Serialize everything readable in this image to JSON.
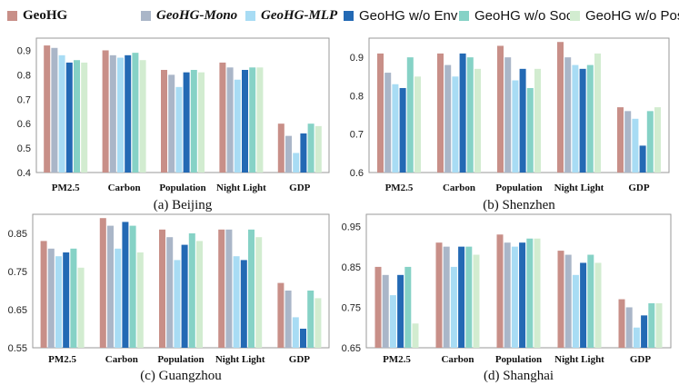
{
  "legend": [
    {
      "name": "GeoHG",
      "color": "#c88f88",
      "style": "bold"
    },
    {
      "name": "GeoHG-Mono",
      "color": "#aab6c8",
      "style": "bi"
    },
    {
      "name": "GeoHG-MLP",
      "color": "#a8dcf4",
      "style": "bi"
    },
    {
      "name": "GeoHG w/o Env",
      "color": "#2369b4",
      "style": "normal"
    },
    {
      "name": "GeoHG w/o Soc",
      "color": "#86d2c6",
      "style": "normal"
    },
    {
      "name": "GeoHG w/o Pos",
      "color": "#d2ecd0",
      "style": "normal"
    }
  ],
  "chart_data": [
    {
      "type": "bar",
      "title": "(a) Beijing",
      "categories": [
        "PM2.5",
        "Carbon",
        "Population",
        "Night Light",
        "GDP"
      ],
      "ylim": [
        0.4,
        0.95
      ],
      "yticks": [
        "0.4",
        "0.5",
        "0.6",
        "0.7",
        "0.8",
        "0.9"
      ],
      "series": [
        {
          "name": "GeoHG",
          "values": [
            0.92,
            0.9,
            0.82,
            0.85,
            0.6
          ]
        },
        {
          "name": "GeoHG-Mono",
          "values": [
            0.91,
            0.88,
            0.8,
            0.83,
            0.55
          ]
        },
        {
          "name": "GeoHG-MLP",
          "values": [
            0.88,
            0.87,
            0.75,
            0.78,
            0.48
          ]
        },
        {
          "name": "GeoHG w/o Env",
          "values": [
            0.85,
            0.88,
            0.81,
            0.82,
            0.56
          ]
        },
        {
          "name": "GeoHG w/o Soc",
          "values": [
            0.86,
            0.89,
            0.82,
            0.83,
            0.6
          ]
        },
        {
          "name": "GeoHG w/o Pos",
          "values": [
            0.85,
            0.86,
            0.81,
            0.83,
            0.59
          ]
        }
      ]
    },
    {
      "type": "bar",
      "title": "(b) Shenzhen",
      "categories": [
        "PM2.5",
        "Carbon",
        "Population",
        "Night Light",
        "GDP"
      ],
      "ylim": [
        0.6,
        0.95
      ],
      "yticks": [
        "0.6",
        "0.7",
        "0.8",
        "0.9"
      ],
      "series": [
        {
          "name": "GeoHG",
          "values": [
            0.91,
            0.91,
            0.93,
            0.94,
            0.77
          ]
        },
        {
          "name": "GeoHG-Mono",
          "values": [
            0.86,
            0.88,
            0.9,
            0.9,
            0.76
          ]
        },
        {
          "name": "GeoHG-MLP",
          "values": [
            0.83,
            0.85,
            0.84,
            0.88,
            0.74
          ]
        },
        {
          "name": "GeoHG w/o Env",
          "values": [
            0.82,
            0.91,
            0.87,
            0.87,
            0.67
          ]
        },
        {
          "name": "GeoHG w/o Soc",
          "values": [
            0.9,
            0.9,
            0.82,
            0.88,
            0.76
          ]
        },
        {
          "name": "GeoHG w/o Pos",
          "values": [
            0.85,
            0.87,
            0.87,
            0.91,
            0.77
          ]
        }
      ]
    },
    {
      "type": "bar",
      "title": "(c) Guangzhou",
      "categories": [
        "PM2.5",
        "Carbon",
        "Population",
        "Night Light",
        "GDP"
      ],
      "ylim": [
        0.55,
        0.9
      ],
      "yticks": [
        "0.55",
        "0.65",
        "0.75",
        "0.85"
      ],
      "series": [
        {
          "name": "GeoHG",
          "values": [
            0.83,
            0.89,
            0.86,
            0.86,
            0.72
          ]
        },
        {
          "name": "GeoHG-Mono",
          "values": [
            0.81,
            0.87,
            0.84,
            0.86,
            0.7
          ]
        },
        {
          "name": "GeoHG-MLP",
          "values": [
            0.79,
            0.81,
            0.78,
            0.79,
            0.63
          ]
        },
        {
          "name": "GeoHG w/o Env",
          "values": [
            0.8,
            0.88,
            0.82,
            0.78,
            0.6
          ]
        },
        {
          "name": "GeoHG w/o Soc",
          "values": [
            0.81,
            0.87,
            0.85,
            0.86,
            0.7
          ]
        },
        {
          "name": "GeoHG w/o Pos",
          "values": [
            0.76,
            0.8,
            0.83,
            0.84,
            0.68
          ]
        }
      ]
    },
    {
      "type": "bar",
      "title": "(d) Shanghai",
      "categories": [
        "PM2.5",
        "Carbon",
        "Population",
        "Night Light",
        "GDP"
      ],
      "ylim": [
        0.65,
        0.98
      ],
      "yticks": [
        "0.65",
        "0.75",
        "0.85",
        "0.95"
      ],
      "series": [
        {
          "name": "GeoHG",
          "values": [
            0.85,
            0.91,
            0.93,
            0.89,
            0.77
          ]
        },
        {
          "name": "GeoHG-Mono",
          "values": [
            0.83,
            0.9,
            0.91,
            0.88,
            0.75
          ]
        },
        {
          "name": "GeoHG-MLP",
          "values": [
            0.78,
            0.85,
            0.9,
            0.83,
            0.7
          ]
        },
        {
          "name": "GeoHG w/o Env",
          "values": [
            0.83,
            0.9,
            0.91,
            0.86,
            0.73
          ]
        },
        {
          "name": "GeoHG w/o Soc",
          "values": [
            0.85,
            0.9,
            0.92,
            0.88,
            0.76
          ]
        },
        {
          "name": "GeoHG w/o Pos",
          "values": [
            0.71,
            0.88,
            0.92,
            0.86,
            0.76
          ]
        }
      ]
    }
  ]
}
